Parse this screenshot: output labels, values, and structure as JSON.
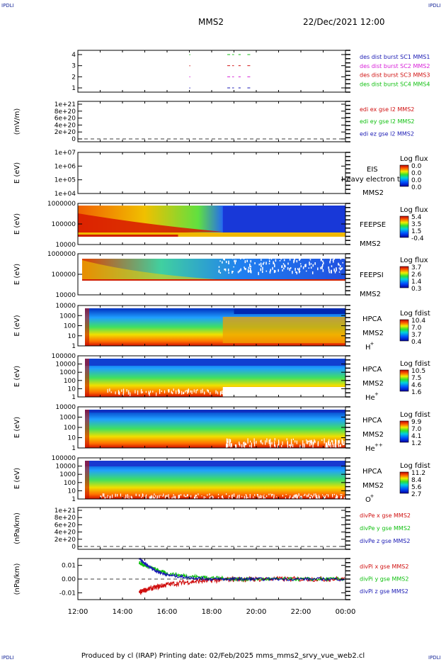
{
  "corners": {
    "tl": "IPDLI",
    "tr": "IPDLI",
    "bl": "IPDLI",
    "br": "IPDLI"
  },
  "header": {
    "mission": "MMS2",
    "datetime": "22/Dec/2021 12:00"
  },
  "footer": {
    "text": "Produced by cl (IRAP)    Printing date: 02/Feb/2025    mms_mms2_srvy_vue_web2.cl"
  },
  "xaxis": {
    "ticks": [
      "12:00",
      "14:00",
      "16:00",
      "18:00",
      "20:00",
      "22:00",
      "00:00"
    ]
  },
  "chart_data": [
    {
      "type": "line",
      "name": "burst-panel",
      "yticks": [
        "1",
        "2",
        "3",
        "4"
      ],
      "legend": [
        {
          "text": "des dist burst SC1 MMS1",
          "color": "#1a1ab4"
        },
        {
          "text": "des dist burst SC2 MMS2",
          "color": "#d81ed8"
        },
        {
          "text": "des dist burst SC3 MMS3",
          "color": "#d01010"
        },
        {
          "text": "des dist burst SC4 MMS4",
          "color": "#10c010"
        }
      ],
      "segments": [
        {
          "level": 4,
          "color": "#10c010",
          "ranges": [
            [
              17.0,
              17.02
            ],
            [
              18.7,
              19.0
            ],
            [
              19.2,
              19.3
            ],
            [
              19.6,
              19.8
            ]
          ]
        },
        {
          "level": 3,
          "color": "#d01010",
          "ranges": [
            [
              17.0,
              17.02
            ],
            [
              18.7,
              19.0
            ],
            [
              19.2,
              19.3
            ],
            [
              19.6,
              19.8
            ]
          ]
        },
        {
          "level": 2,
          "color": "#d81ed8",
          "ranges": [
            [
              17.0,
              17.02
            ],
            [
              18.7,
              19.0
            ],
            [
              19.2,
              19.3
            ],
            [
              19.6,
              19.8
            ]
          ]
        },
        {
          "level": 1,
          "color": "#1a1ab4",
          "ranges": [
            [
              17.0,
              17.02
            ],
            [
              18.7,
              19.0
            ],
            [
              19.2,
              19.3
            ],
            [
              19.6,
              19.8
            ]
          ]
        }
      ]
    },
    {
      "type": "line",
      "name": "edi-panel",
      "ylabel": "(mV/m)",
      "yticks": [
        "0",
        "2e+20",
        "4e+20",
        "6e+20",
        "8e+20",
        "1e+21"
      ],
      "legend": [
        {
          "text": "edi ex gse l2 MMS2",
          "color": "#d01010"
        },
        {
          "text": "edi ey gse l2 MMS2",
          "color": "#10c010"
        },
        {
          "text": "edi ez gse l2 MMS2",
          "color": "#1a1ab4"
        }
      ]
    },
    {
      "type": "heatmap",
      "name": "eis-panel",
      "ylabel": "E (eV)",
      "yticks": [
        "1e+04",
        "1e+05",
        "1e+06",
        "1e+07"
      ],
      "labels": [
        "EIS",
        "MMS2"
      ],
      "overlay": "Heavy electron to",
      "cbar_title": "Log flux",
      "cbar_ticks": [
        "0.0",
        "0.0",
        "0.0",
        "0.0"
      ]
    },
    {
      "type": "heatmap",
      "name": "feepse-panel",
      "ylabel": "E (eV)",
      "yticks": [
        "10000",
        "100000",
        "1000000"
      ],
      "labels": [
        "FEEPSE",
        "MMS2"
      ],
      "cbar_title": "Log flux",
      "cbar_ticks": [
        "5.4",
        "3.5",
        "1.5",
        "-0.4"
      ]
    },
    {
      "type": "heatmap",
      "name": "feepsi-panel",
      "ylabel": "E (eV)",
      "yticks": [
        "10000",
        "100000",
        "1000000"
      ],
      "labels": [
        "FEEPSI",
        "MMS2"
      ],
      "cbar_title": "Log flux",
      "cbar_ticks": [
        "3.7",
        "2.6",
        "1.4",
        "0.3"
      ]
    },
    {
      "type": "heatmap",
      "name": "hpca-h-panel",
      "ylabel": "E (eV)",
      "yticks": [
        "1",
        "10",
        "100",
        "1000",
        "10000"
      ],
      "labels": [
        "HPCA",
        "MMS2"
      ],
      "species": "H",
      "species_sup": "+",
      "cbar_title": "Log fdist",
      "cbar_ticks": [
        "10.4",
        "7.0",
        "3.7",
        "0.4"
      ]
    },
    {
      "type": "heatmap",
      "name": "hpca-he-panel",
      "ylabel": "E (eV)",
      "yticks": [
        "1",
        "10",
        "100",
        "1000",
        "10000",
        "100000"
      ],
      "labels": [
        "HPCA",
        "MMS2"
      ],
      "species": "He",
      "species_sup": "+",
      "cbar_title": "Log fdist",
      "cbar_ticks": [
        "10.5",
        "7.5",
        "4.6",
        "1.6"
      ]
    },
    {
      "type": "heatmap",
      "name": "hpca-hepp-panel",
      "ylabel": "E (eV)",
      "yticks": [
        "1",
        "10",
        "100",
        "1000",
        "10000"
      ],
      "labels": [
        "HPCA",
        "MMS2"
      ],
      "species": "He",
      "species_sup": "++",
      "cbar_title": "Log fdist",
      "cbar_ticks": [
        "9.9",
        "7.0",
        "4.1",
        "1.2"
      ]
    },
    {
      "type": "heatmap",
      "name": "hpca-o-panel",
      "ylabel": "E (eV)",
      "yticks": [
        "1",
        "10",
        "100",
        "1000",
        "10000",
        "100000"
      ],
      "labels": [
        "HPCA",
        "MMS2"
      ],
      "species": "O",
      "species_sup": "+",
      "cbar_title": "Log fdist",
      "cbar_ticks": [
        "11.2",
        "8.4",
        "5.6",
        "2.7"
      ]
    },
    {
      "type": "line",
      "name": "divpe-panel",
      "ylabel": "(nPa/km)",
      "yticks": [
        "0",
        "2e+20",
        "4e+20",
        "6e+20",
        "8e+20",
        "1e+21"
      ],
      "legend": [
        {
          "text": "divPe x gse MMS2",
          "color": "#d01010"
        },
        {
          "text": "divPe y gse MMS2",
          "color": "#10c010"
        },
        {
          "text": "divPe z gse MMS2",
          "color": "#1a1ab4"
        }
      ]
    },
    {
      "type": "line",
      "name": "divpi-panel",
      "ylabel": "(nPa/km)",
      "yticks": [
        "-0.01",
        "0.00",
        "0.01"
      ],
      "legend": [
        {
          "text": "divPi x gse MMS2",
          "color": "#d01010"
        },
        {
          "text": "divPi y gse MMS2",
          "color": "#10c010"
        },
        {
          "text": "divPi z gse MMS2",
          "color": "#1a1ab4"
        }
      ],
      "series": [
        {
          "name": "divPi x gse MMS2",
          "color": "#d01010",
          "x": [
            14.75,
            15.0,
            15.5,
            16.0,
            17.0,
            18.0,
            19.0,
            20.0,
            22.0,
            24.0
          ],
          "y": [
            -0.01,
            -0.008,
            -0.006,
            -0.004,
            -0.002,
            -0.001,
            0.0,
            0.0,
            0.0,
            0.0
          ]
        },
        {
          "name": "divPi y gse MMS2",
          "color": "#10c010",
          "x": [
            14.75,
            15.0,
            15.5,
            16.0,
            17.0,
            18.0,
            19.0,
            20.0,
            22.0,
            24.0
          ],
          "y": [
            0.012,
            0.01,
            0.007,
            0.004,
            0.002,
            0.001,
            0.0,
            0.0,
            0.0,
            0.0
          ]
        },
        {
          "name": "divPi z gse MMS2",
          "color": "#1a1ab4",
          "x": [
            14.75,
            15.0,
            15.5,
            16.0,
            17.0,
            18.0,
            19.0,
            20.0,
            22.0,
            24.0
          ],
          "y": [
            0.015,
            0.011,
            0.006,
            0.003,
            0.001,
            0.0,
            0.0,
            0.0,
            0.0,
            0.0
          ]
        }
      ]
    }
  ]
}
